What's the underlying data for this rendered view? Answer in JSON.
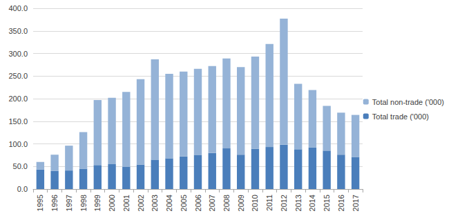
{
  "chart_data": {
    "type": "bar",
    "stacked": true,
    "grid": true,
    "legend": "right",
    "categories": [
      "1995",
      "1996",
      "1997",
      "1998",
      "1999",
      "2000",
      "2001",
      "2002",
      "2003",
      "2004",
      "2005",
      "2006",
      "2007",
      "2008",
      "2009",
      "2010",
      "2011",
      "2012",
      "2013",
      "2014",
      "2015",
      "2016",
      "2017"
    ],
    "series": [
      {
        "name": "Total trade ('000)",
        "color": "#4a7ebb",
        "values": [
          43,
          40,
          41,
          45,
          53,
          55,
          49,
          54,
          65,
          68,
          72,
          75,
          80,
          90,
          76,
          89,
          93,
          98,
          88,
          92,
          85,
          76,
          71
        ]
      },
      {
        "name": "Total non-trade ('000)",
        "color": "#95b3d7",
        "values": [
          17,
          36,
          55,
          81,
          144,
          147,
          166,
          189,
          222,
          187,
          188,
          191,
          192,
          199,
          194,
          204,
          228,
          279,
          145,
          127,
          99,
          93,
          93
        ]
      }
    ],
    "ylim": [
      0,
      400
    ],
    "yticks": [
      {
        "value": 0,
        "label": "0.0"
      },
      {
        "value": 50,
        "label": "50.0"
      },
      {
        "value": 100,
        "label": "100.0"
      },
      {
        "value": 150,
        "label": "150.0"
      },
      {
        "value": 200,
        "label": "200.0"
      },
      {
        "value": 250,
        "label": "250.0"
      },
      {
        "value": 300,
        "label": "300.0"
      },
      {
        "value": 350,
        "label": "350.0"
      },
      {
        "value": 400,
        "label": "400.0"
      }
    ]
  }
}
